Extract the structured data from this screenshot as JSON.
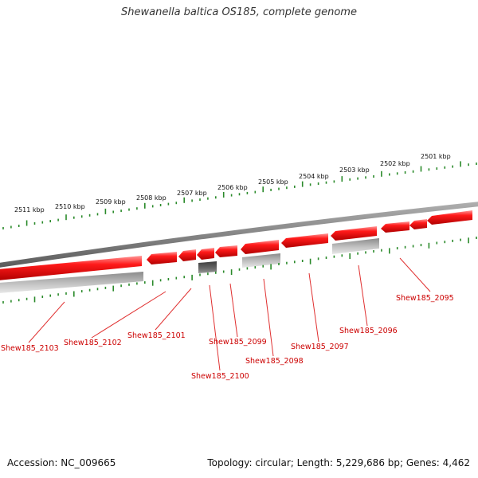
{
  "title": "Shewanella baltica OS185, complete genome",
  "footer": {
    "accession": "Accession: NC_009665",
    "summary": "Topology: circular; Length: 5,229,686 bp; Genes: 4,462"
  },
  "colors": {
    "backbone": "#8a8a8a",
    "tick": "#2a8a2a",
    "gene": "#e60000",
    "gene_light": "#ff8080",
    "gene_dark": "#a00000",
    "rna_gray": "#b4b4b4",
    "rna_gray_light": "#e0e0e0",
    "rna_dark": "#5a5a5a",
    "label": "#cc0000"
  },
  "ruler": {
    "unit": "kbp",
    "labels": [
      "2511 kbp",
      "2510 kbp",
      "2509 kbp",
      "2508 kbp",
      "2507 kbp",
      "2506 kbp",
      "2505 kbp",
      "2504 kbp",
      "2503 kbp",
      "2502 kbp",
      "2501 kbp"
    ]
  },
  "genes": [
    {
      "label": "Shew185_2103",
      "strand": "minus"
    },
    {
      "label": "Shew185_2102",
      "strand": "minus"
    },
    {
      "label": "Shew185_2101",
      "strand": "minus"
    },
    {
      "label": "Shew185_2100",
      "strand": "minus"
    },
    {
      "label": "Shew185_2099",
      "strand": "minus"
    },
    {
      "label": "Shew185_2098",
      "strand": "minus"
    },
    {
      "label": "Shew185_2097",
      "strand": "minus"
    },
    {
      "label": "Shew185_2096",
      "strand": "minus"
    },
    {
      "label": "Shew185_2095",
      "strand": "minus"
    }
  ]
}
